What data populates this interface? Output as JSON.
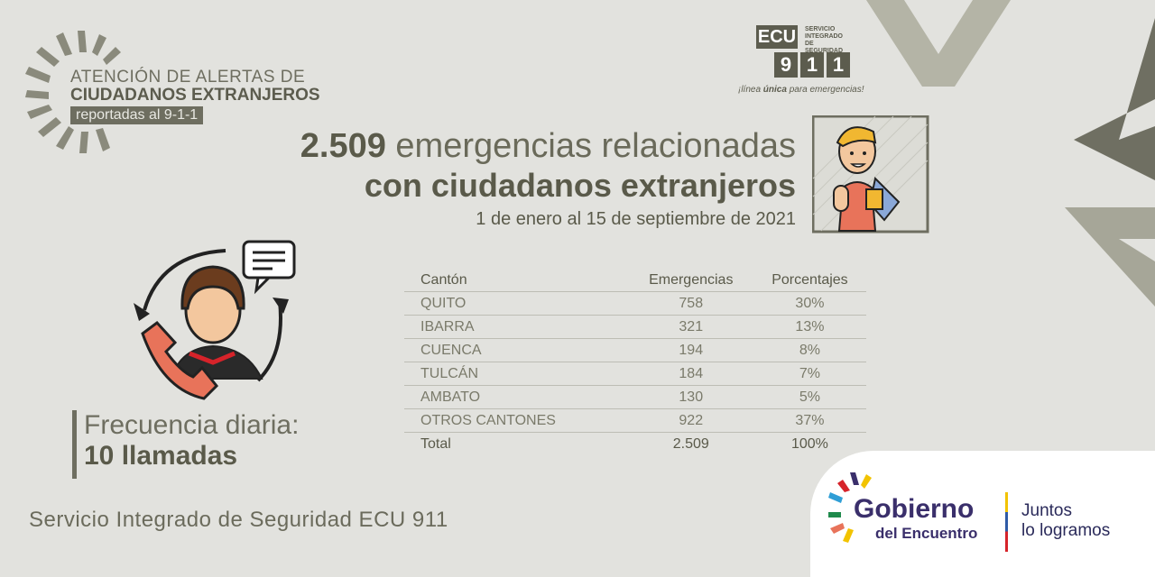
{
  "header": {
    "line1": "ATENCIÓN DE ALERTAS DE",
    "line2": "CIUDADANOS EXTRANJEROS",
    "line3": "reportadas al 9-1-1"
  },
  "logo_ecu": {
    "brand": "ECU",
    "digits": [
      "9",
      "1",
      "1"
    ],
    "tagline_lines": [
      "SERVICIO",
      "INTEGRADO",
      "DE SEGURIDAD"
    ],
    "slogan_pre": "¡línea ",
    "slogan_bold": "única",
    "slogan_post": " para emergencias!"
  },
  "headline": {
    "count": "2.509",
    "line1_rest": " emergencias relacionadas",
    "line2": "con ciudadanos extranjeros",
    "period": "1 de enero al 15 de septiembre de 2021"
  },
  "table": {
    "headers": [
      "Cantón",
      "Emergencias",
      "Porcentajes"
    ],
    "rows": [
      [
        "QUITO",
        "758",
        "30%"
      ],
      [
        "IBARRA",
        "321",
        "13%"
      ],
      [
        "CUENCA",
        "194",
        "8%"
      ],
      [
        "TULCÁN",
        "184",
        "7%"
      ],
      [
        "AMBATO",
        "130",
        "5%"
      ],
      [
        "OTROS CANTONES",
        "922",
        "37%"
      ]
    ],
    "total": [
      "Total",
      "2.509",
      "100%"
    ]
  },
  "frequency": {
    "label": "Frecuencia diaria:",
    "value": "10 llamadas"
  },
  "footer": "Servicio Integrado de Seguridad ECU 911",
  "gobierno": {
    "name": "Gobierno",
    "sub": "del Encuentro",
    "slogan_lines": [
      "Juntos",
      "lo logramos"
    ]
  },
  "colors": {
    "background": "#e2e2de",
    "accent": "#6e6e60"
  }
}
